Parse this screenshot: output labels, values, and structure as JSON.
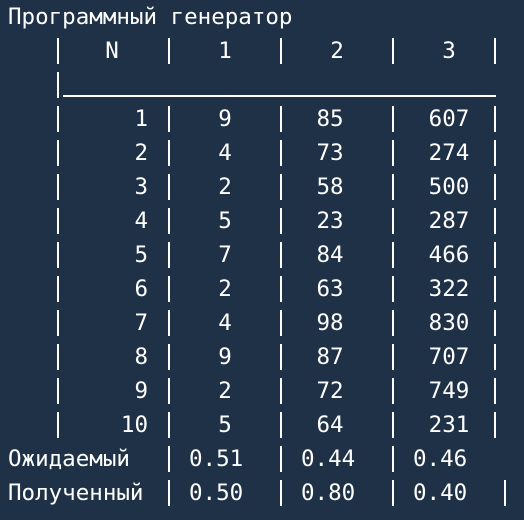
{
  "title": "Программный генератор",
  "header": {
    "n": "N",
    "c1": "1",
    "c2": "2",
    "c3": "3"
  },
  "rows": [
    {
      "n": "1",
      "v1": "9",
      "v2": "85",
      "v3": "607"
    },
    {
      "n": "2",
      "v1": "4",
      "v2": "73",
      "v3": "274"
    },
    {
      "n": "3",
      "v1": "2",
      "v2": "58",
      "v3": "500"
    },
    {
      "n": "4",
      "v1": "5",
      "v2": "23",
      "v3": "287"
    },
    {
      "n": "5",
      "v1": "7",
      "v2": "84",
      "v3": "466"
    },
    {
      "n": "6",
      "v1": "2",
      "v2": "63",
      "v3": "322"
    },
    {
      "n": "7",
      "v1": "4",
      "v2": "98",
      "v3": "830"
    },
    {
      "n": "8",
      "v1": "9",
      "v2": "87",
      "v3": "707"
    },
    {
      "n": "9",
      "v1": "2",
      "v2": "72",
      "v3": "749"
    },
    {
      "n": "10",
      "v1": "5",
      "v2": "64",
      "v3": "231"
    }
  ],
  "expected": {
    "label": "Ожидаемый",
    "v1": "0.51",
    "v2": "0.44",
    "v3": "0.46"
  },
  "obtained": {
    "label": "Полученный",
    "v1": "0.50",
    "v2": "0.80",
    "v3": "0.40"
  },
  "colors": {
    "background": "#1f3147",
    "text": "#ffffff"
  }
}
